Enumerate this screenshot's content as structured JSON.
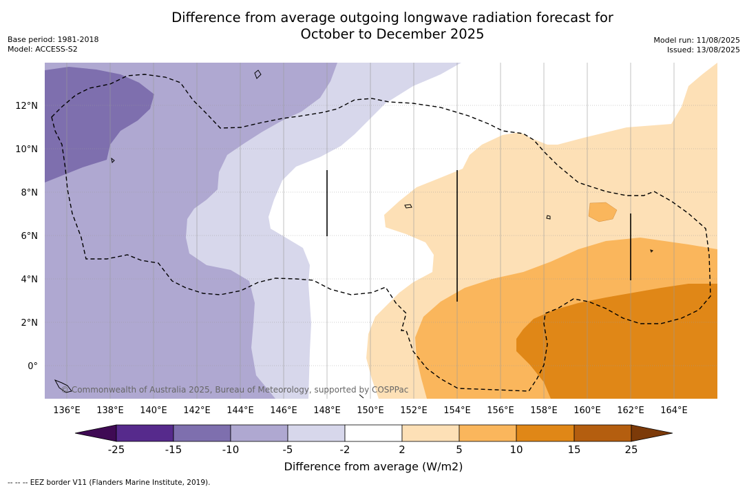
{
  "title_line1": "Difference from average outgoing longwave radiation forecast for",
  "title_line2": "October to December 2025",
  "base_period": "Base period: 1981-2018",
  "model": "Model: ACCESS-S2",
  "model_run": "Model run: 11/08/2025",
  "issued": "Issued: 13/08/2025",
  "copyright": "© Commonwealth of Australia 2025, Bureau of Meteorology, supported by COSPPac",
  "longitude_labels": [
    "136°E",
    "138°E",
    "140°E",
    "142°E",
    "144°E",
    "146°E",
    "148°E",
    "150°E",
    "152°E",
    "154°E",
    "156°E",
    "158°E",
    "160°E",
    "162°E",
    "164°E"
  ],
  "latitude_labels": [
    "12°N",
    "10°N",
    "8°N",
    "6°N",
    "4°N",
    "2°N",
    "0°"
  ],
  "colorbar": {
    "title": "Difference from average (W/m2)",
    "tick_labels": [
      "-25",
      "-15",
      "-10",
      "-5",
      "-2",
      "2",
      "5",
      "10",
      "15",
      "25"
    ],
    "colors": [
      "#3f0a54",
      "#562a8c",
      "#7e6fae",
      "#afa8d1",
      "#d7d7eb",
      "#ffffff",
      "#fde0b6",
      "#fab65c",
      "#e08717",
      "#b45e0f",
      "#7c3a09"
    ]
  },
  "legend_note": "--  --  -- EEZ border V11 (Flanders Marine Institute, 2019)."
}
